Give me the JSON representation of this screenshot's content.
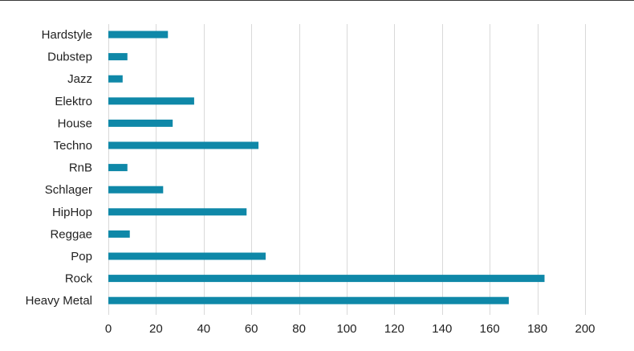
{
  "chart_data": {
    "type": "bar",
    "orientation": "horizontal",
    "categories": [
      "Hardstyle",
      "Dubstep",
      "Jazz",
      "Elektro",
      "House",
      "Techno",
      "RnB",
      "Schlager",
      "HipHop",
      "Reggae",
      "Pop",
      "Rock",
      "Heavy Metal"
    ],
    "values": [
      25,
      8,
      6,
      36,
      27,
      63,
      8,
      23,
      58,
      9,
      66,
      183,
      168
    ],
    "xlim": [
      0,
      200
    ],
    "xticks": [
      0,
      20,
      40,
      60,
      80,
      100,
      120,
      140,
      160,
      180,
      200
    ],
    "grid": "vertical",
    "legend": "none",
    "bar_color": "#0f88a8",
    "grid_color": "#d9d9d9",
    "title": "",
    "xlabel": "",
    "ylabel": ""
  }
}
